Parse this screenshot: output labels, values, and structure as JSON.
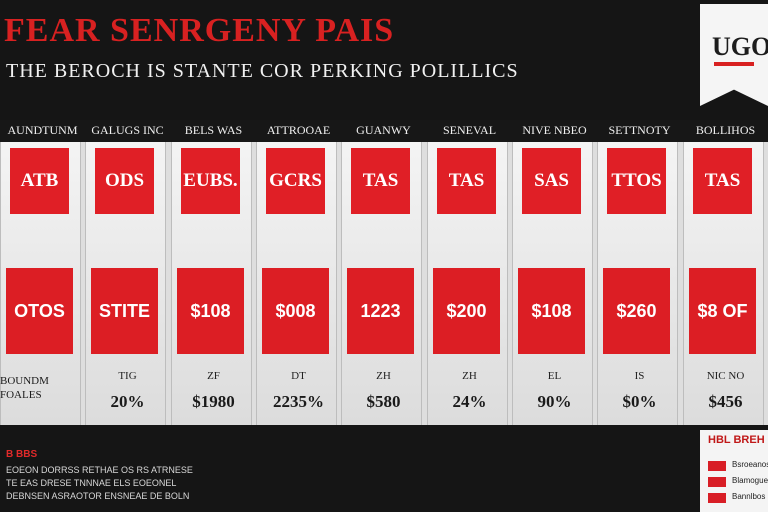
{
  "header": {
    "title": "FEAR SENRGENY PAIS",
    "subtitle": "THE BEROCH IS STANTE COR PERKING POLILLICS",
    "logo_text": "UGO"
  },
  "table": {
    "columns": [
      {
        "header": "AUNDTUNM",
        "top_value": "ATB",
        "mid_value": "OTOS",
        "small_label": "",
        "bottom_value": ""
      },
      {
        "header": "GALUGS INC",
        "top_value": "ODS",
        "mid_value": "STITE",
        "small_label": "TIG",
        "bottom_value": "20%"
      },
      {
        "header": "BELS WAS",
        "top_value": "EUBS.",
        "mid_value": "$108",
        "small_label": "ZF",
        "bottom_value": "$1980"
      },
      {
        "header": "ATTROOAE",
        "top_value": "GCRS",
        "mid_value": "$008",
        "small_label": "DT",
        "bottom_value": "2235%"
      },
      {
        "header": "GUANWY",
        "top_value": "TAS",
        "mid_value": "1223",
        "small_label": "ZH",
        "bottom_value": "$580"
      },
      {
        "header": "SENEVAL",
        "top_value": "TAS",
        "mid_value": "$200",
        "small_label": "ZH",
        "bottom_value": "24%"
      },
      {
        "header": "NIVE NBEO",
        "top_value": "SAS",
        "mid_value": "$108",
        "small_label": "EL",
        "bottom_value": "90%"
      },
      {
        "header": "SETTNOTY",
        "top_value": "TTOS",
        "mid_value": "$260",
        "small_label": "IS",
        "bottom_value": "$0%"
      },
      {
        "header": "BOLLIHOS",
        "top_value": "TAS",
        "mid_value": "$8 OF",
        "small_label": "NIC NO",
        "bottom_value": "$456"
      }
    ],
    "row_label": "BOUNDM FOALES"
  },
  "footer": {
    "title": "B BBS",
    "lines": [
      "EOEON DORRSS RETHAE OS RS ATRNESE",
      "TE EAS DRESE TNNNAE ELS EOEONEL",
      "DEBNSEN ASRAOTOR ENSNEAE DE BOLN"
    ]
  },
  "legend": {
    "title": "HBL BREH",
    "items": [
      "Bsroeanos",
      "Blamogues",
      "Bannlbos"
    ]
  },
  "colors": {
    "brand_red": "#e01f26",
    "background": "#141414"
  }
}
